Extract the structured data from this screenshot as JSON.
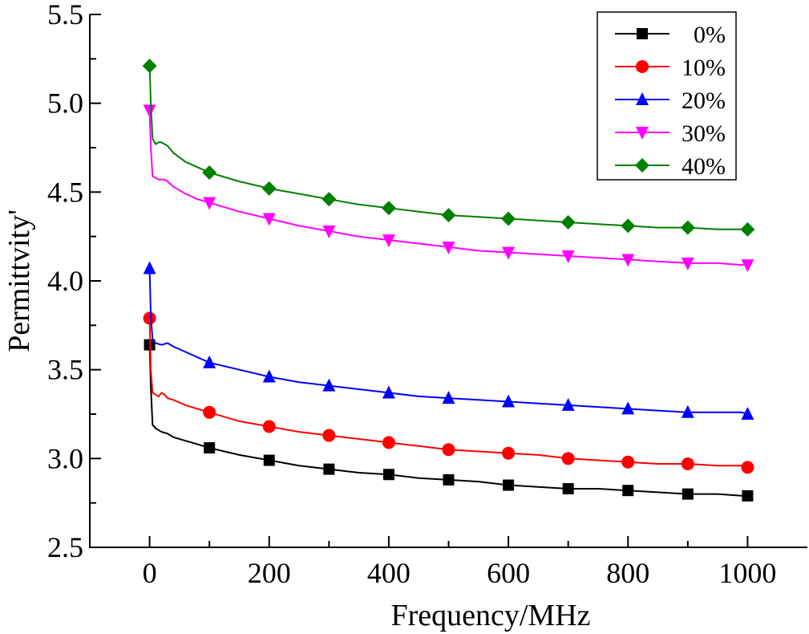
{
  "chart_data": {
    "type": "line",
    "title": "",
    "xlabel": "Frequency/MHz",
    "ylabel": "Permittvity'",
    "xlim": [
      -100,
      1100
    ],
    "ylim": [
      2.5,
      5.5
    ],
    "xticks": [
      0,
      200,
      400,
      600,
      800,
      1000
    ],
    "xtick_labels": [
      "0",
      "200",
      "400",
      "600",
      "800",
      "1000"
    ],
    "yticks": [
      2.5,
      3.0,
      3.5,
      4.0,
      4.5,
      5.0,
      5.5
    ],
    "ytick_labels": [
      "2.5",
      "3.0",
      "3.5",
      "4.0",
      "4.5",
      "5.0",
      "5.5"
    ],
    "legend_position": "top-right",
    "series": [
      {
        "name": "0%",
        "color": "#000000",
        "marker": "square",
        "marker_x": [
          0,
          100,
          200,
          300,
          400,
          500,
          600,
          700,
          800,
          900,
          1000
        ],
        "marker_y": [
          3.64,
          3.06,
          2.99,
          2.94,
          2.91,
          2.88,
          2.85,
          2.83,
          2.82,
          2.8,
          2.79
        ],
        "curve_x": [
          0,
          2,
          5,
          10,
          20,
          30,
          40,
          60,
          80,
          100,
          150,
          200,
          250,
          300,
          350,
          400,
          450,
          500,
          550,
          600,
          650,
          700,
          750,
          800,
          850,
          900,
          950,
          990,
          1000
        ],
        "curve_y": [
          3.64,
          3.4,
          3.19,
          3.17,
          3.15,
          3.14,
          3.12,
          3.1,
          3.08,
          3.06,
          3.02,
          2.99,
          2.96,
          2.94,
          2.92,
          2.91,
          2.89,
          2.88,
          2.87,
          2.85,
          2.84,
          2.83,
          2.83,
          2.82,
          2.81,
          2.8,
          2.8,
          2.79,
          2.79
        ]
      },
      {
        "name": "10%",
        "color": "#ff0000",
        "marker": "circle",
        "marker_x": [
          0,
          100,
          200,
          300,
          400,
          500,
          600,
          700,
          800,
          900,
          1000
        ],
        "marker_y": [
          3.79,
          3.26,
          3.18,
          3.13,
          3.09,
          3.05,
          3.03,
          3.0,
          2.98,
          2.97,
          2.95
        ],
        "curve_x": [
          0,
          2,
          5,
          10,
          15,
          20,
          25,
          30,
          40,
          60,
          80,
          100,
          150,
          200,
          250,
          300,
          350,
          400,
          450,
          500,
          550,
          600,
          650,
          700,
          750,
          800,
          850,
          900,
          950,
          990,
          1000
        ],
        "curve_y": [
          3.79,
          3.5,
          3.37,
          3.36,
          3.35,
          3.37,
          3.36,
          3.34,
          3.33,
          3.3,
          3.28,
          3.26,
          3.21,
          3.18,
          3.15,
          3.13,
          3.11,
          3.09,
          3.07,
          3.05,
          3.04,
          3.03,
          3.02,
          3.0,
          2.99,
          2.98,
          2.97,
          2.97,
          2.96,
          2.96,
          2.95
        ]
      },
      {
        "name": "20%",
        "color": "#0000ff",
        "marker": "triangle-up",
        "marker_x": [
          0,
          100,
          200,
          300,
          400,
          500,
          600,
          700,
          800,
          900,
          1000
        ],
        "marker_y": [
          4.07,
          3.54,
          3.46,
          3.41,
          3.37,
          3.34,
          3.32,
          3.3,
          3.28,
          3.26,
          3.25
        ],
        "curve_x": [
          0,
          2,
          5,
          10,
          20,
          30,
          40,
          60,
          80,
          100,
          150,
          200,
          250,
          300,
          350,
          400,
          450,
          500,
          550,
          600,
          650,
          700,
          750,
          800,
          850,
          900,
          950,
          990,
          1000
        ],
        "curve_y": [
          4.07,
          3.8,
          3.67,
          3.65,
          3.64,
          3.65,
          3.63,
          3.6,
          3.57,
          3.54,
          3.5,
          3.46,
          3.43,
          3.41,
          3.39,
          3.37,
          3.35,
          3.34,
          3.33,
          3.32,
          3.31,
          3.3,
          3.29,
          3.28,
          3.27,
          3.26,
          3.26,
          3.26,
          3.25
        ]
      },
      {
        "name": "30%",
        "color": "#ff00ff",
        "marker": "triangle-down",
        "marker_x": [
          0,
          100,
          200,
          300,
          400,
          500,
          600,
          700,
          800,
          900,
          1000
        ],
        "marker_y": [
          4.96,
          4.44,
          4.35,
          4.28,
          4.23,
          4.19,
          4.16,
          4.14,
          4.12,
          4.1,
          4.09
        ],
        "curve_x": [
          0,
          2,
          5,
          10,
          15,
          20,
          25,
          30,
          40,
          60,
          80,
          100,
          150,
          200,
          250,
          300,
          350,
          400,
          450,
          500,
          550,
          600,
          650,
          700,
          750,
          800,
          850,
          900,
          950,
          990,
          1000
        ],
        "curve_y": [
          4.96,
          4.75,
          4.59,
          4.58,
          4.57,
          4.57,
          4.57,
          4.56,
          4.53,
          4.49,
          4.46,
          4.44,
          4.39,
          4.35,
          4.31,
          4.28,
          4.25,
          4.23,
          4.21,
          4.19,
          4.17,
          4.16,
          4.15,
          4.14,
          4.13,
          4.12,
          4.11,
          4.1,
          4.1,
          4.09,
          4.09
        ]
      },
      {
        "name": "40%",
        "color": "#008000",
        "marker": "diamond",
        "marker_x": [
          0,
          100,
          200,
          300,
          400,
          500,
          600,
          700,
          800,
          900,
          1000
        ],
        "marker_y": [
          5.21,
          4.61,
          4.52,
          4.46,
          4.41,
          4.37,
          4.35,
          4.33,
          4.31,
          4.3,
          4.29
        ],
        "curve_x": [
          0,
          2,
          5,
          10,
          15,
          20,
          25,
          30,
          40,
          60,
          80,
          100,
          150,
          200,
          250,
          300,
          350,
          400,
          450,
          500,
          550,
          600,
          650,
          700,
          750,
          800,
          850,
          900,
          950,
          990,
          1000
        ],
        "curve_y": [
          5.21,
          5.0,
          4.8,
          4.77,
          4.78,
          4.78,
          4.77,
          4.76,
          4.72,
          4.67,
          4.64,
          4.61,
          4.56,
          4.52,
          4.49,
          4.46,
          4.43,
          4.41,
          4.39,
          4.37,
          4.36,
          4.35,
          4.34,
          4.33,
          4.32,
          4.31,
          4.3,
          4.3,
          4.29,
          4.29,
          4.29
        ]
      }
    ]
  }
}
